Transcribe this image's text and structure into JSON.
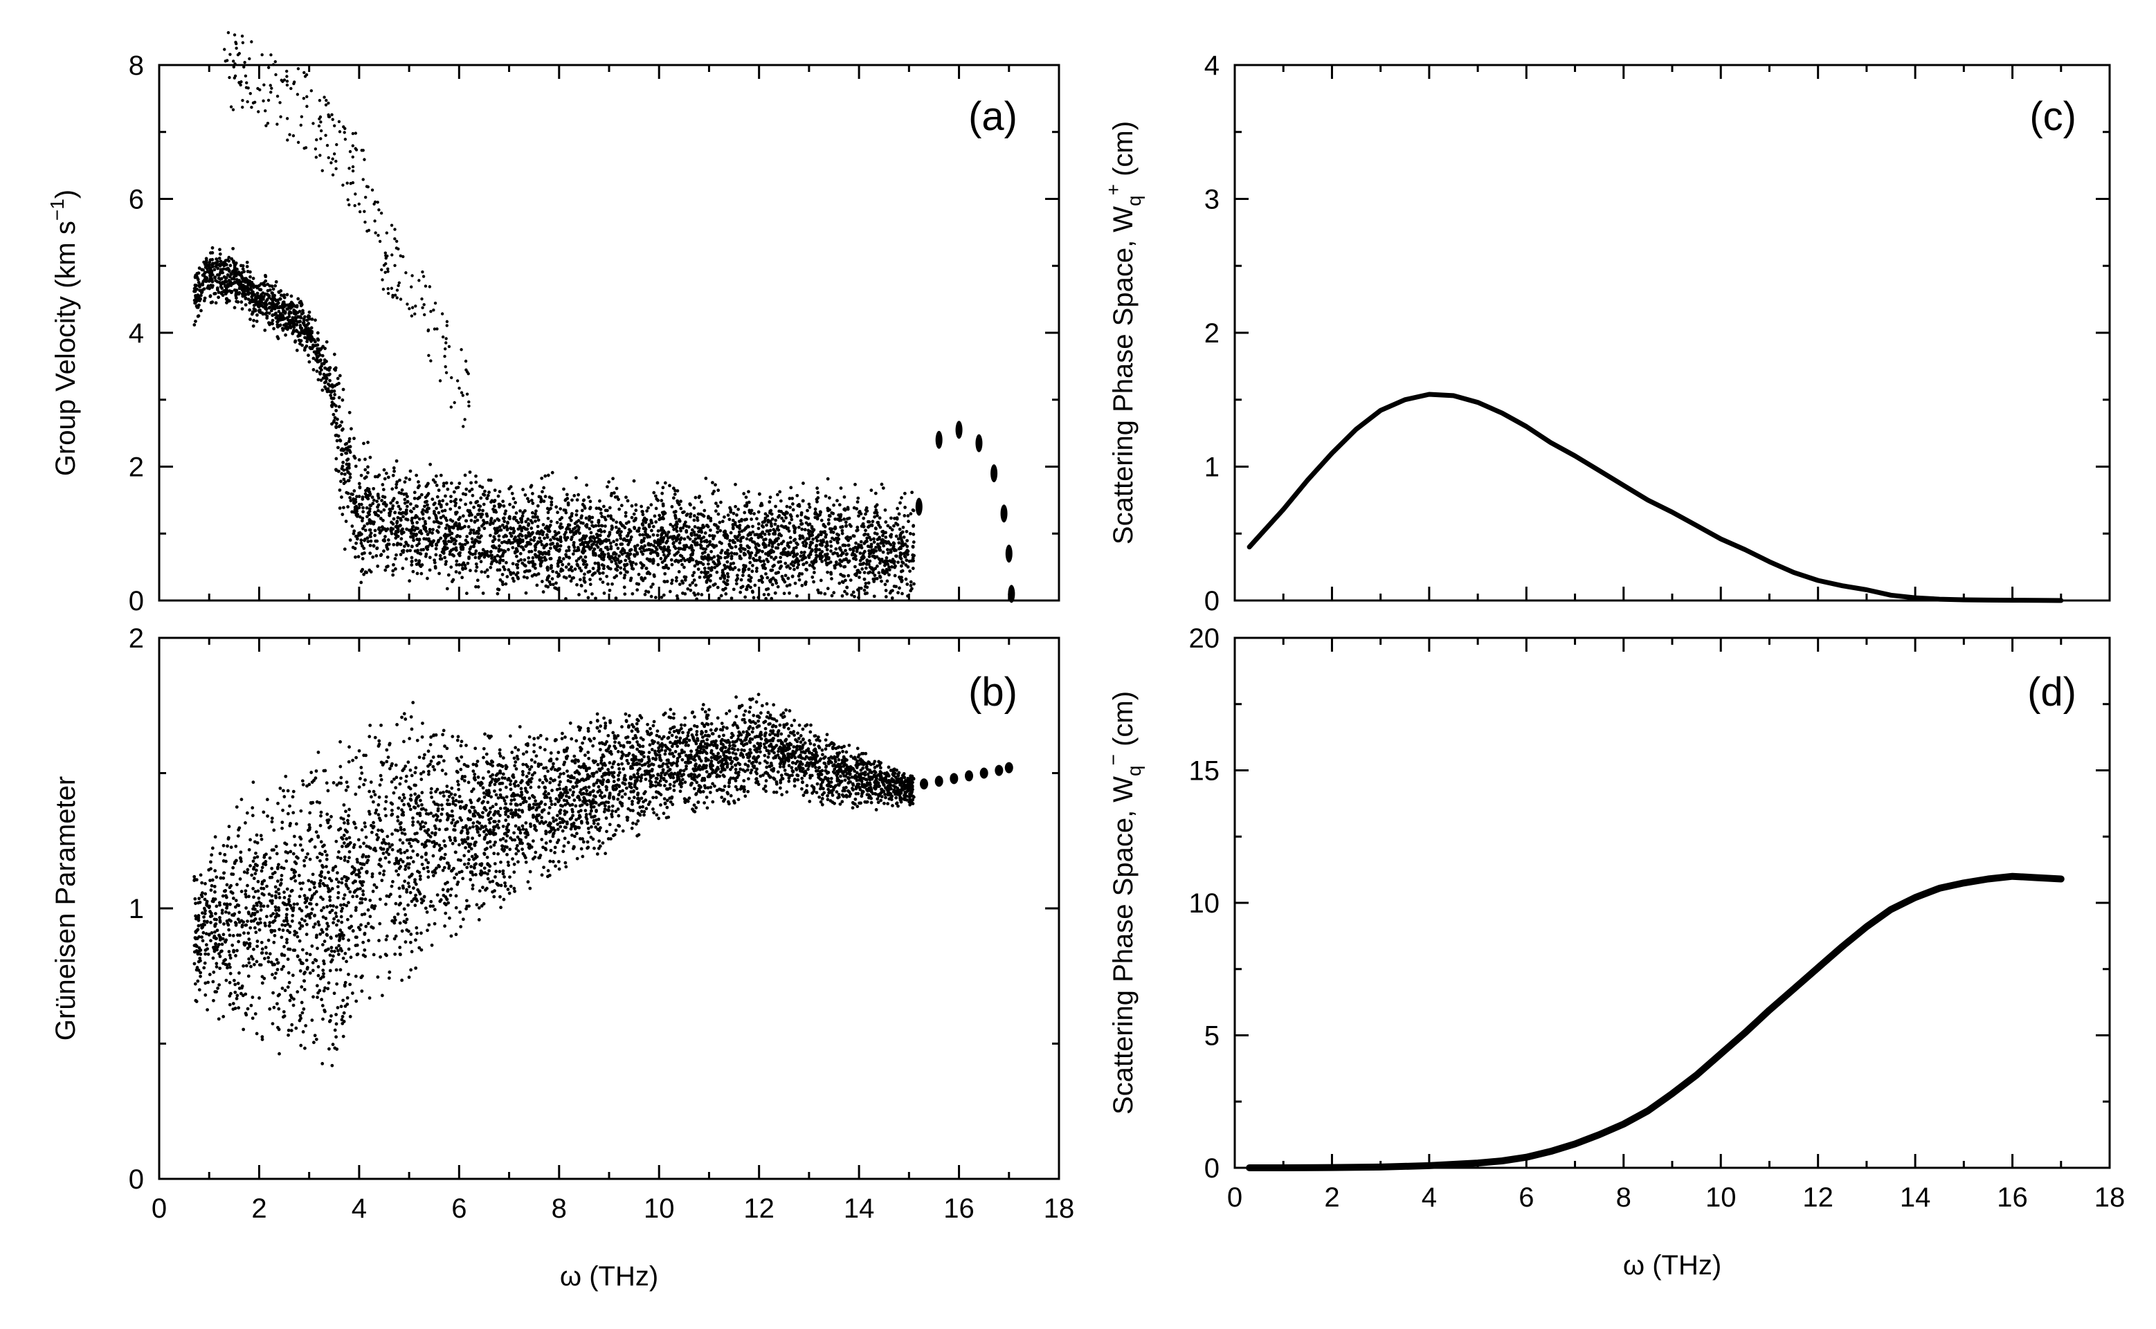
{
  "chart_data": [
    {
      "id": "a",
      "type": "scatter",
      "tag": "(a)",
      "title": "",
      "ylabel_main": "Group Velocity (km s",
      "ylabel_sup": "−1",
      "ylabel_end": ")",
      "xlabel": "",
      "xlim": [
        0,
        18
      ],
      "ylim": [
        0,
        8
      ],
      "xticks": [
        0,
        2,
        4,
        6,
        8,
        10,
        12,
        14,
        16,
        18
      ],
      "yticks": [
        0,
        2,
        4,
        6,
        8
      ],
      "show_x_tick_labels": false,
      "description_points": [
        [
          0.7,
          4.5
        ],
        [
          1.0,
          4.9
        ],
        [
          1.5,
          4.8
        ],
        [
          2.0,
          4.5
        ],
        [
          2.5,
          4.3
        ],
        [
          3.0,
          4.0
        ],
        [
          3.4,
          3.3
        ],
        [
          3.7,
          2.0
        ],
        [
          4.0,
          1.3
        ],
        [
          5.0,
          1.1
        ],
        [
          6.0,
          1.0
        ],
        [
          8.0,
          0.9
        ],
        [
          10.0,
          0.85
        ],
        [
          12.0,
          0.8
        ],
        [
          13.0,
          0.9
        ],
        [
          14.0,
          0.8
        ],
        [
          15.0,
          0.7
        ]
      ],
      "upper_branch_points": [
        [
          1.5,
          7.9
        ],
        [
          2.5,
          7.5
        ],
        [
          3.0,
          7.3
        ],
        [
          3.6,
          6.6
        ],
        [
          4.0,
          6.4
        ],
        [
          4.5,
          5.2
        ],
        [
          5.0,
          4.7
        ],
        [
          5.5,
          4.0
        ],
        [
          6.0,
          3.2
        ]
      ],
      "optical_points": [
        [
          15.2,
          1.4
        ],
        [
          15.6,
          2.4
        ],
        [
          16.0,
          2.55
        ],
        [
          16.4,
          2.35
        ],
        [
          16.7,
          1.9
        ],
        [
          16.9,
          1.3
        ],
        [
          17.0,
          0.7
        ],
        [
          17.05,
          0.1
        ]
      ]
    },
    {
      "id": "b",
      "type": "scatter",
      "tag": "(b)",
      "title": "",
      "ylabel": "Grüneisen Parameter",
      "xlabel": "ω (THz)",
      "xlim": [
        0,
        18
      ],
      "ylim": [
        0,
        2
      ],
      "xticks": [
        0,
        2,
        4,
        6,
        8,
        10,
        12,
        14,
        16,
        18
      ],
      "yticks": [
        0,
        1,
        2
      ],
      "show_x_tick_labels": true,
      "band_lower": [
        [
          0.7,
          0.6
        ],
        [
          2.0,
          0.5
        ],
        [
          3.0,
          0.4
        ],
        [
          3.5,
          0.35
        ],
        [
          4.0,
          0.6
        ],
        [
          5.0,
          0.7
        ],
        [
          6.0,
          0.9
        ],
        [
          8.0,
          1.1
        ],
        [
          10.0,
          1.3
        ],
        [
          12.0,
          1.4
        ],
        [
          14.0,
          1.35
        ],
        [
          15.0,
          1.38
        ]
      ],
      "band_upper": [
        [
          0.7,
          1.2
        ],
        [
          2.0,
          1.5
        ],
        [
          3.0,
          1.6
        ],
        [
          4.0,
          1.7
        ],
        [
          5.0,
          1.8
        ],
        [
          6.0,
          1.65
        ],
        [
          8.0,
          1.7
        ],
        [
          10.0,
          1.75
        ],
        [
          12.0,
          1.8
        ],
        [
          14.0,
          1.6
        ],
        [
          15.0,
          1.5
        ]
      ],
      "optical_points": [
        [
          15.3,
          1.46
        ],
        [
          15.6,
          1.47
        ],
        [
          15.9,
          1.48
        ],
        [
          16.2,
          1.49
        ],
        [
          16.5,
          1.5
        ],
        [
          16.8,
          1.51
        ],
        [
          17.0,
          1.52
        ]
      ]
    },
    {
      "id": "c",
      "type": "line",
      "tag": "(c)",
      "title": "",
      "ylabel_main": "Scattering Phase Space, W",
      "ylabel_sub": "q",
      "ylabel_sup": "+",
      "ylabel_end": " (cm)",
      "xlabel": "",
      "xlim": [
        0,
        18
      ],
      "ylim": [
        0,
        4
      ],
      "xticks": [
        0,
        2,
        4,
        6,
        8,
        10,
        12,
        14,
        16,
        18
      ],
      "yticks": [
        0,
        1,
        2,
        3,
        4
      ],
      "show_x_tick_labels": false,
      "x": [
        0.3,
        0.6,
        1.0,
        1.5,
        2.0,
        2.5,
        3.0,
        3.5,
        4.0,
        4.5,
        5.0,
        5.5,
        6.0,
        6.5,
        7.0,
        7.5,
        8.0,
        8.5,
        9.0,
        9.5,
        10.0,
        10.5,
        11.0,
        11.5,
        12.0,
        12.5,
        13.0,
        13.5,
        14.0,
        14.5,
        15.0,
        15.5,
        16.0,
        16.5,
        17.0
      ],
      "y": [
        0.4,
        0.52,
        0.68,
        0.9,
        1.1,
        1.28,
        1.42,
        1.5,
        1.54,
        1.53,
        1.48,
        1.4,
        1.3,
        1.18,
        1.08,
        0.97,
        0.86,
        0.75,
        0.66,
        0.56,
        0.46,
        0.38,
        0.29,
        0.21,
        0.15,
        0.11,
        0.08,
        0.04,
        0.02,
        0.01,
        0.005,
        0.003,
        0.002,
        0.001,
        0.0
      ]
    },
    {
      "id": "d",
      "type": "line",
      "tag": "(d)",
      "title": "",
      "ylabel_main": "Scattering Phase Space, W",
      "ylabel_sub": "q",
      "ylabel_sup": "−",
      "ylabel_end": " (cm)",
      "xlabel": "ω (THz)",
      "xlim": [
        0,
        18
      ],
      "ylim": [
        0,
        20
      ],
      "xticks": [
        0,
        2,
        4,
        6,
        8,
        10,
        12,
        14,
        16,
        18
      ],
      "yticks": [
        0,
        5,
        10,
        15,
        20
      ],
      "show_x_tick_labels": true,
      "x": [
        0.3,
        1.0,
        2.0,
        3.0,
        4.0,
        5.0,
        5.5,
        6.0,
        6.5,
        7.0,
        7.5,
        8.0,
        8.5,
        9.0,
        9.5,
        10.0,
        10.5,
        11.0,
        11.5,
        12.0,
        12.5,
        13.0,
        13.5,
        14.0,
        14.5,
        15.0,
        15.5,
        16.0,
        16.5,
        17.0
      ],
      "y": [
        0.0,
        0.0,
        0.01,
        0.03,
        0.08,
        0.18,
        0.26,
        0.4,
        0.62,
        0.9,
        1.25,
        1.65,
        2.15,
        2.8,
        3.5,
        4.3,
        5.1,
        5.95,
        6.75,
        7.55,
        8.35,
        9.1,
        9.75,
        10.2,
        10.55,
        10.75,
        10.9,
        11.0,
        10.95,
        10.9
      ]
    }
  ]
}
